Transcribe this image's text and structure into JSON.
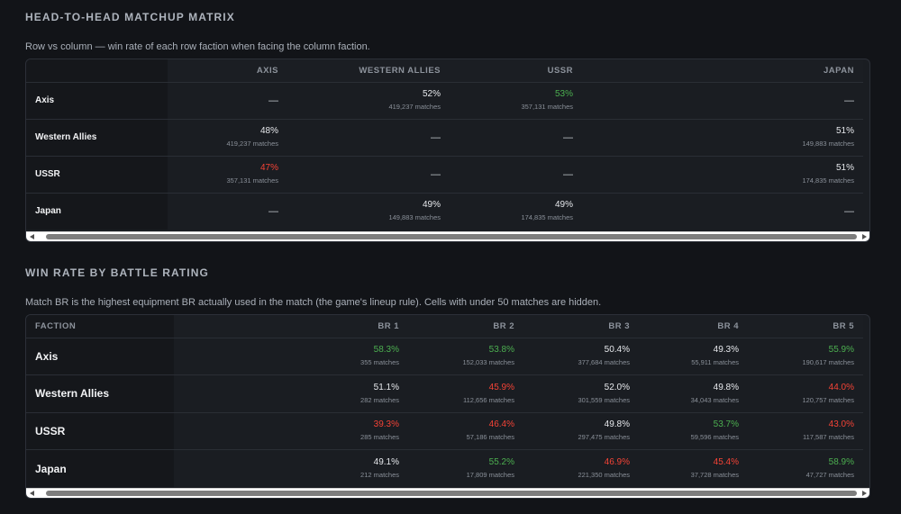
{
  "matrix": {
    "title": "HEAD-TO-HEAD MATCHUP MATRIX",
    "description": "Row vs column — win rate of each row faction when facing the column faction.",
    "columns": [
      "AXIS",
      "WESTERN ALLIES",
      "USSR",
      "JAPAN"
    ],
    "rows": [
      {
        "label": "Axis",
        "cells": [
          {
            "pct": "—",
            "matches": "",
            "tone": "dash"
          },
          {
            "pct": "52%",
            "matches": "419,237 matches",
            "tone": "neutral"
          },
          {
            "pct": "53%",
            "matches": "357,131 matches",
            "tone": "good"
          },
          {
            "pct": "—",
            "matches": "",
            "tone": "dash"
          }
        ]
      },
      {
        "label": "Western Allies",
        "cells": [
          {
            "pct": "48%",
            "matches": "419,237 matches",
            "tone": "neutral"
          },
          {
            "pct": "—",
            "matches": "",
            "tone": "dash"
          },
          {
            "pct": "—",
            "matches": "",
            "tone": "dash"
          },
          {
            "pct": "51%",
            "matches": "149,883 matches",
            "tone": "neutral"
          }
        ]
      },
      {
        "label": "USSR",
        "cells": [
          {
            "pct": "47%",
            "matches": "357,131 matches",
            "tone": "bad"
          },
          {
            "pct": "—",
            "matches": "",
            "tone": "dash"
          },
          {
            "pct": "—",
            "matches": "",
            "tone": "dash"
          },
          {
            "pct": "51%",
            "matches": "174,835 matches",
            "tone": "neutral"
          }
        ]
      },
      {
        "label": "Japan",
        "cells": [
          {
            "pct": "—",
            "matches": "",
            "tone": "dash"
          },
          {
            "pct": "49%",
            "matches": "149,883 matches",
            "tone": "neutral"
          },
          {
            "pct": "49%",
            "matches": "174,835 matches",
            "tone": "neutral"
          },
          {
            "pct": "—",
            "matches": "",
            "tone": "dash"
          }
        ]
      }
    ]
  },
  "br": {
    "title": "WIN RATE BY BATTLE RATING",
    "description": "Match BR is the highest equipment BR actually used in the match (the game's lineup rule). Cells with under 50 matches are hidden.",
    "corner_label": "FACTION",
    "columns": [
      "BR 1",
      "BR 2",
      "BR 3",
      "BR 4",
      "BR 5"
    ],
    "rows": [
      {
        "label": "Axis",
        "cells": [
          {
            "pct": "58.3%",
            "matches": "355 matches",
            "tone": "good"
          },
          {
            "pct": "53.8%",
            "matches": "152,033 matches",
            "tone": "good"
          },
          {
            "pct": "50.4%",
            "matches": "377,684 matches",
            "tone": "neutral"
          },
          {
            "pct": "49.3%",
            "matches": "55,911 matches",
            "tone": "neutral"
          },
          {
            "pct": "55.9%",
            "matches": "190,617 matches",
            "tone": "good"
          }
        ]
      },
      {
        "label": "Western Allies",
        "cells": [
          {
            "pct": "51.1%",
            "matches": "282 matches",
            "tone": "neutral"
          },
          {
            "pct": "45.9%",
            "matches": "112,656 matches",
            "tone": "bad"
          },
          {
            "pct": "52.0%",
            "matches": "301,559 matches",
            "tone": "neutral"
          },
          {
            "pct": "49.8%",
            "matches": "34,043 matches",
            "tone": "neutral"
          },
          {
            "pct": "44.0%",
            "matches": "120,757 matches",
            "tone": "bad"
          }
        ]
      },
      {
        "label": "USSR",
        "cells": [
          {
            "pct": "39.3%",
            "matches": "285 matches",
            "tone": "bad"
          },
          {
            "pct": "46.4%",
            "matches": "57,186 matches",
            "tone": "bad"
          },
          {
            "pct": "49.8%",
            "matches": "297,475 matches",
            "tone": "neutral"
          },
          {
            "pct": "53.7%",
            "matches": "59,596 matches",
            "tone": "good"
          },
          {
            "pct": "43.0%",
            "matches": "117,587 matches",
            "tone": "bad"
          }
        ]
      },
      {
        "label": "Japan",
        "cells": [
          {
            "pct": "49.1%",
            "matches": "212 matches",
            "tone": "neutral"
          },
          {
            "pct": "55.2%",
            "matches": "17,809 matches",
            "tone": "good"
          },
          {
            "pct": "46.9%",
            "matches": "221,350 matches",
            "tone": "bad"
          },
          {
            "pct": "45.4%",
            "matches": "37,728 matches",
            "tone": "bad"
          },
          {
            "pct": "58.9%",
            "matches": "47,727 matches",
            "tone": "good"
          }
        ]
      }
    ]
  },
  "colors": {
    "good": "#4caf50",
    "bad": "#f44336",
    "neutral": "#e6e8ec",
    "dash": "#c7cbd1"
  },
  "icons": {
    "scroll_left": "triangle-left-icon",
    "scroll_right": "triangle-right-icon"
  }
}
